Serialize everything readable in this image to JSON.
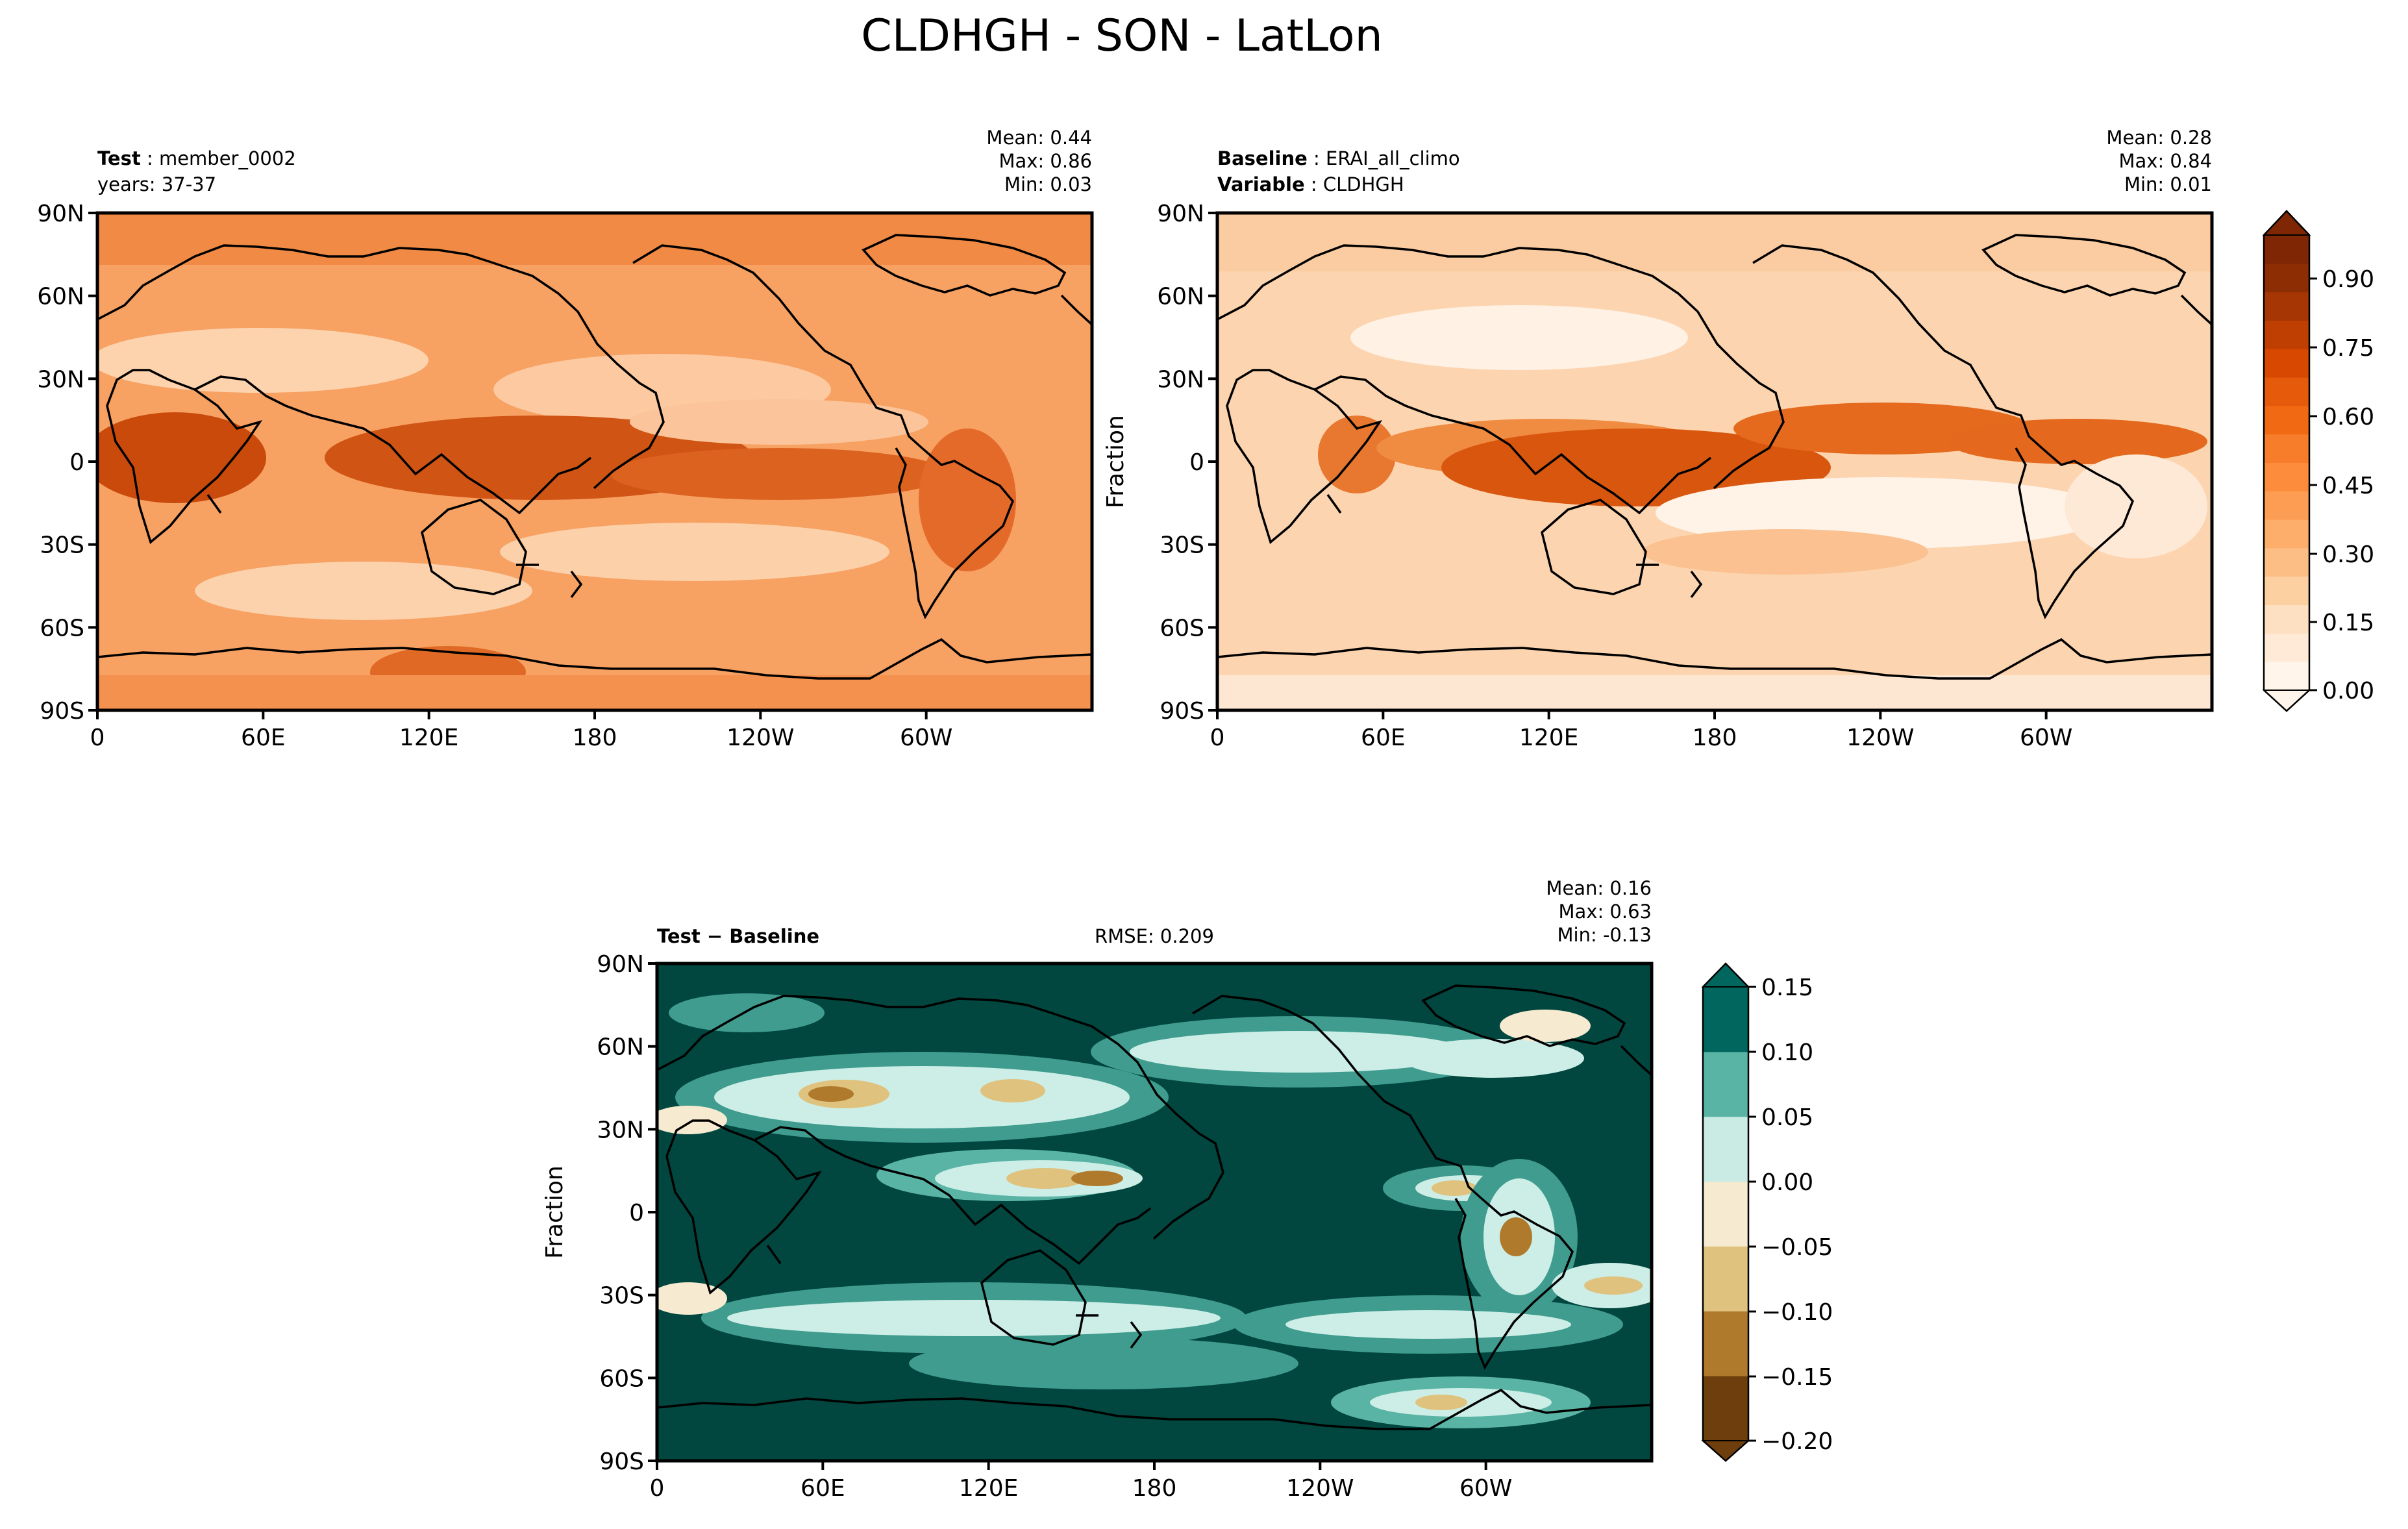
{
  "title": "CLDHGH - SON - LatLon",
  "lat_ticks": [
    "90N",
    "60N",
    "30N",
    "0",
    "30S",
    "60S",
    "90S"
  ],
  "lon_ticks": [
    "0",
    "60E",
    "120E",
    "180",
    "120W",
    "60W"
  ],
  "panels": {
    "test": {
      "label_bold": "Test",
      "label_value": "member_0002",
      "line2": "years: 37-37",
      "stats": {
        "mean": "Mean:  0.44",
        "max": "Max:  0.86",
        "min": "Min:  0.03"
      }
    },
    "baseline": {
      "label_bold": "Baseline",
      "label_value": "ERAI_all_climo",
      "var_bold": "Variable",
      "var_value": "CLDHGH",
      "ylabel": "Fraction",
      "stats": {
        "mean": "Mean:  0.28",
        "max": "Max:  0.84",
        "min": "Min:  0.01"
      }
    },
    "diff": {
      "label_bold": "Test − Baseline",
      "rmse": "RMSE: 0.209",
      "ylabel": "Fraction",
      "stats": {
        "mean": "Mean:  0.16",
        "max": "Max:  0.63",
        "min": "Min: -0.13"
      }
    }
  },
  "colorbars": {
    "oranges": {
      "ticks": [
        "0.90",
        "0.75",
        "0.60",
        "0.45",
        "0.30",
        "0.15",
        "0.00"
      ],
      "colors": [
        "#fff5eb",
        "#feead6",
        "#fde0c2",
        "#fdd0a2",
        "#fdbe85",
        "#fdae6b",
        "#fd9d53",
        "#fd8d3c",
        "#f87d2a",
        "#f16913",
        "#e55a0b",
        "#d94801",
        "#bf3e02",
        "#a63603",
        "#8c2d04",
        "#7f2704"
      ]
    },
    "diverging": {
      "ticks": [
        "0.15",
        "0.10",
        "0.05",
        "0.00",
        "−0.05",
        "−0.10",
        "−0.15",
        "−0.20"
      ],
      "colors": [
        "#6e3f0d",
        "#b07a2c",
        "#dfc27d",
        "#f6ead0",
        "#c9ebe4",
        "#5ab4a5",
        "#01665e"
      ]
    }
  }
}
